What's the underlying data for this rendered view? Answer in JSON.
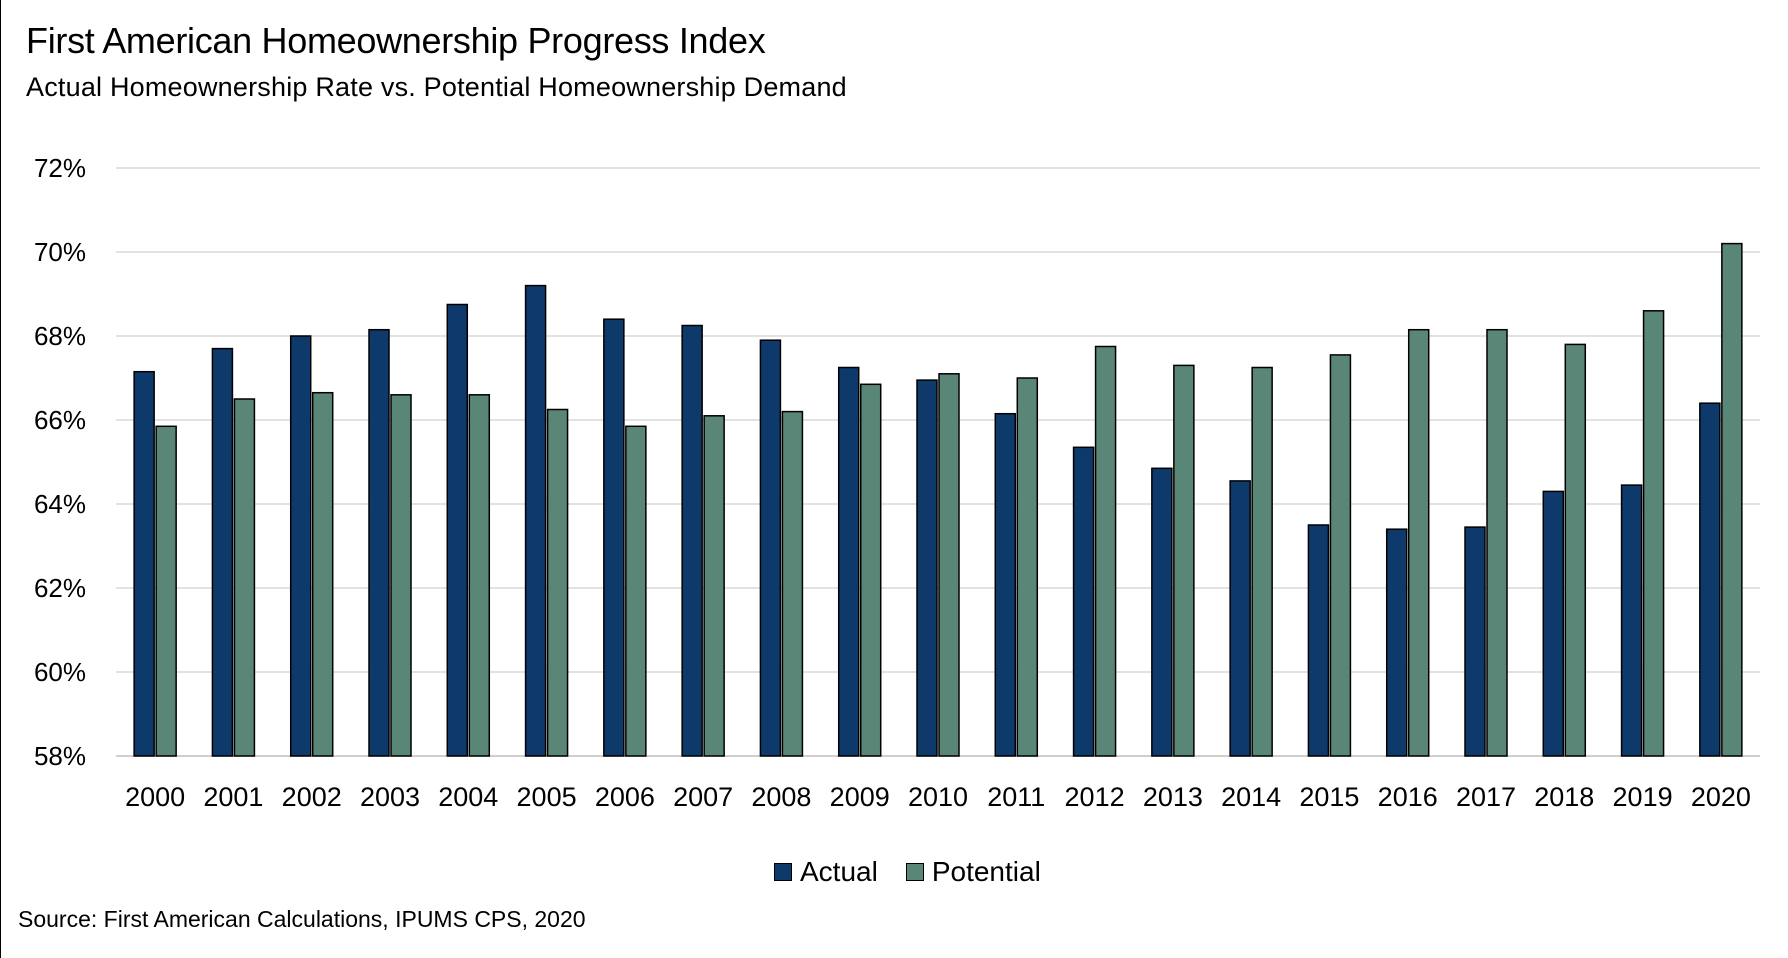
{
  "header": {
    "title": "First American Homeownership Progress Index",
    "subtitle": "Actual Homeownership Rate vs. Potential Homeownership Demand"
  },
  "footer": {
    "source": "Source: First American Calculations, IPUMS  CPS, 2020"
  },
  "legend": {
    "actual_label": "Actual",
    "potential_label": "Potential"
  },
  "colors": {
    "actual": "#0e3a6b",
    "potential": "#5a8677",
    "grid": "#d9d9d9"
  },
  "chart_data": {
    "type": "bar",
    "title": "First American Homeownership Progress Index",
    "subtitle": "Actual Homeownership Rate vs. Potential Homeownership Demand",
    "xlabel": "",
    "ylabel": "",
    "ylim": [
      58,
      72
    ],
    "ytick_step": 2,
    "ytick_format": "percent",
    "grid": true,
    "legend_position": "bottom-center",
    "categories": [
      "2000",
      "2001",
      "2002",
      "2003",
      "2004",
      "2005",
      "2006",
      "2007",
      "2008",
      "2009",
      "2010",
      "2011",
      "2012",
      "2013",
      "2014",
      "2015",
      "2016",
      "2017",
      "2018",
      "2019",
      "2020"
    ],
    "series": [
      {
        "name": "Actual",
        "values": [
          67.15,
          67.7,
          68.0,
          68.15,
          68.75,
          69.2,
          68.4,
          68.25,
          67.9,
          67.25,
          66.95,
          66.15,
          65.35,
          64.85,
          64.55,
          63.5,
          63.4,
          63.45,
          64.3,
          64.45,
          66.4
        ]
      },
      {
        "name": "Potential",
        "values": [
          65.85,
          66.5,
          66.65,
          66.6,
          66.6,
          66.25,
          65.85,
          66.1,
          66.2,
          66.85,
          67.1,
          67.0,
          67.75,
          67.3,
          67.25,
          67.55,
          68.15,
          68.15,
          67.8,
          68.6,
          70.2
        ]
      }
    ]
  }
}
